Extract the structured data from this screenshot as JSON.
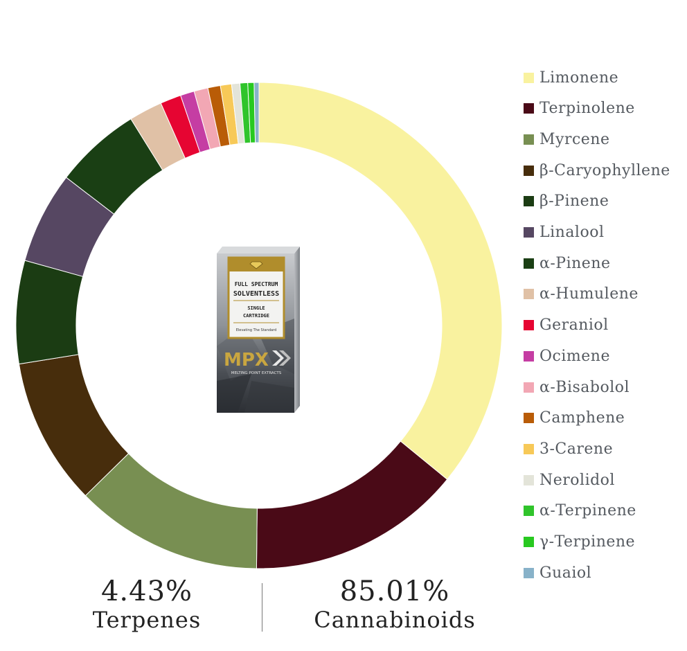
{
  "chart_data": {
    "type": "pie",
    "donut": true,
    "legend_position": "right",
    "categories": [
      "Limonene",
      "Terpinolene",
      "Myrcene",
      "β-Caryophyllene",
      "β-Pinene",
      "Linalool",
      "α-Pinene",
      "α-Humulene",
      "Geraniol",
      "Ocimene",
      "α-Bisabolol",
      "Camphene",
      "3-Carene",
      "Nerolidol",
      "α-Terpinene",
      "γ-Terpinene",
      "Guaiol"
    ],
    "values": [
      38.8,
      15.4,
      13.5,
      10.6,
      7.4,
      6.6,
      6.2,
      2.4,
      1.5,
      1.0,
      1.0,
      0.9,
      0.8,
      0.6,
      0.55,
      0.45,
      0.35
    ],
    "colors": [
      "#f9f29f",
      "#4a0a17",
      "#788f52",
      "#472d0c",
      "#1b3c13",
      "#564762",
      "#1a3f14",
      "#e0c1a6",
      "#e60532",
      "#c53da3",
      "#f2a7b4",
      "#b95c07",
      "#f7c958",
      "#e3e4d9",
      "#30c42b",
      "#28c920",
      "#88b2c9"
    ]
  },
  "stats": {
    "terpenes": {
      "value": "4.43%",
      "label": "Terpenes"
    },
    "cannabinoids": {
      "value": "85.01%",
      "label": "Cannabinoids"
    }
  },
  "product": {
    "line1": "FULL SPECTRUM",
    "line2": "SOLVENTLESS",
    "line3": "SINGLE",
    "line4": "CARTRIDGE",
    "tagline": "Elevating The Standard",
    "brand": "MPX",
    "brand_full": "MELTING POINT EXTRACTS"
  }
}
